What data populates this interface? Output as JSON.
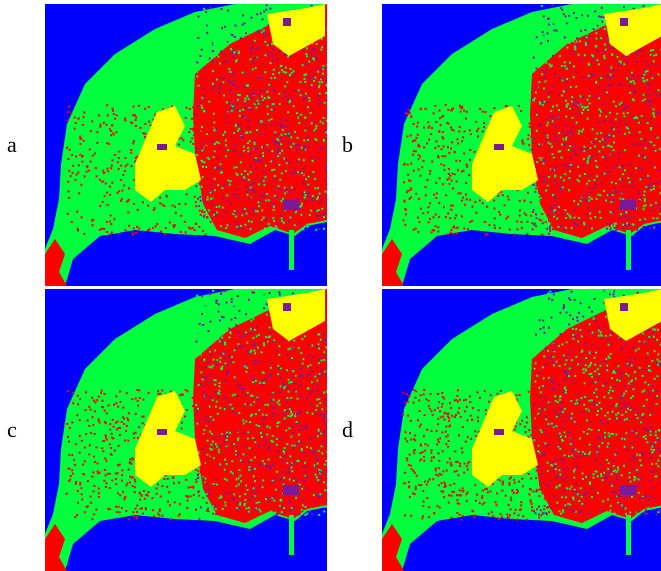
{
  "panels": [
    {
      "label": "a"
    },
    {
      "label": "b"
    },
    {
      "label": "c"
    },
    {
      "label": "d"
    }
  ],
  "legend_colors": {
    "water": "#0000ff",
    "vegetation": "#00ff3c",
    "urban": "#ff0000",
    "bare_soil": "#ffff00",
    "shadow": "#7a1a9a"
  }
}
